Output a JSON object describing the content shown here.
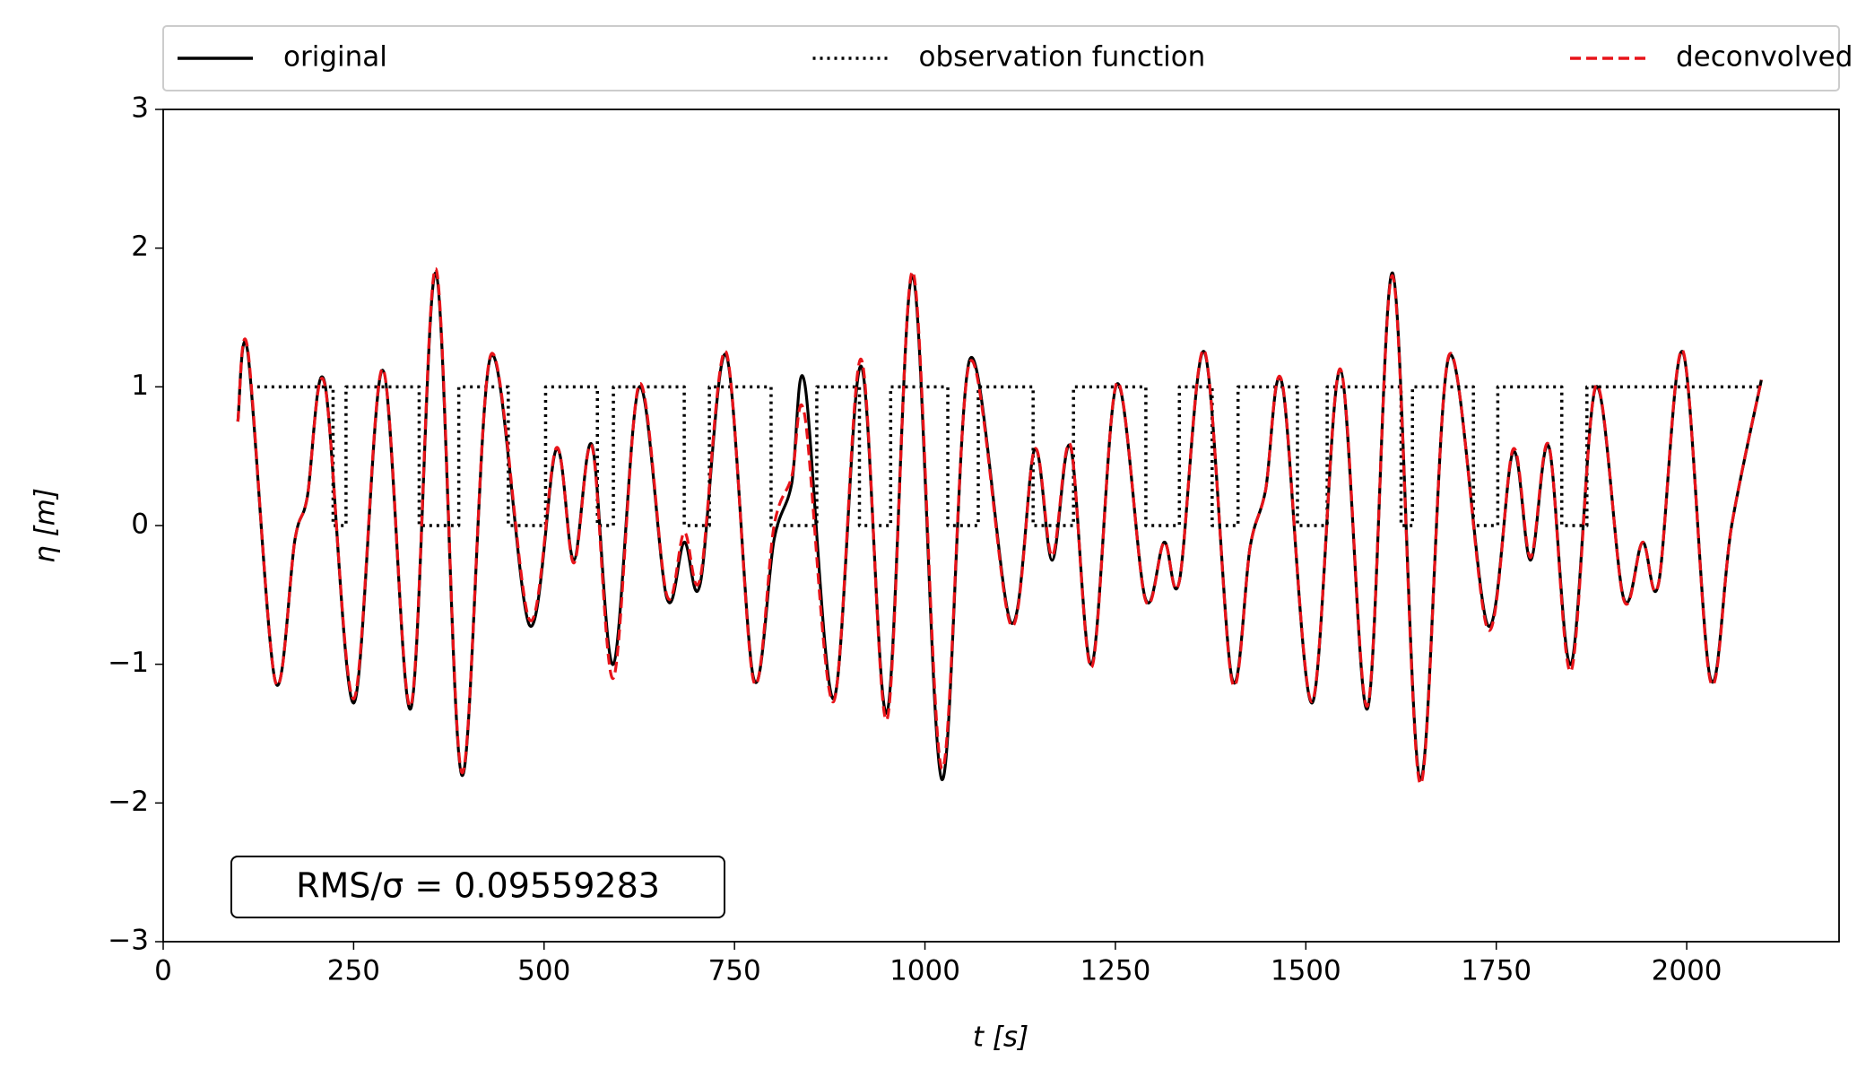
{
  "chart_data": {
    "type": "line",
    "xlabel": "t [s]",
    "ylabel": "η [m]",
    "xlim": [
      0,
      2200
    ],
    "ylim": [
      -3,
      3
    ],
    "xticks": [
      0,
      250,
      500,
      750,
      1000,
      1250,
      1500,
      1750,
      2000
    ],
    "yticks": [
      {
        "value": -3,
        "label": "−3"
      },
      {
        "value": -2,
        "label": "−2"
      },
      {
        "value": -1,
        "label": "−1"
      },
      0,
      1,
      2,
      3
    ],
    "grid": false,
    "legend": "top",
    "annotation": "RMS/σ = 0.09559283",
    "series": [
      {
        "name": "original",
        "color": "#000000",
        "style": "solid",
        "smooth": true,
        "x": [
          98,
          111,
          147,
          173,
          189,
          212,
          250,
          288,
          325,
          358,
          392,
          430,
          481,
          516,
          539,
          563,
          591,
          625,
          661,
          684,
          705,
          739,
          775,
          802,
          825,
          842,
          880,
          916,
          950,
          984,
          1022,
          1059,
          1113,
          1144,
          1167,
          1191,
          1219,
          1252,
          1289,
          1314,
          1334,
          1367,
          1403,
          1427,
          1447,
          1469,
          1508,
          1545,
          1581,
          1614,
          1650,
          1688,
          1739,
          1772,
          1795,
          1819,
          1848,
          1881,
          1917,
          1942,
          1963,
          1995,
          2031,
          2059,
          2098
        ],
        "values": [
          0.75,
          1.25,
          -1.12,
          -0.1,
          0.2,
          1.03,
          -1.28,
          1.12,
          -1.32,
          1.82,
          -1.8,
          1.22,
          -0.72,
          0.55,
          -0.25,
          0.58,
          -1.0,
          1.0,
          -0.52,
          -0.12,
          -0.42,
          1.23,
          -1.1,
          -0.1,
          0.3,
          1.03,
          -1.25,
          1.15,
          -1.35,
          1.8,
          -1.83,
          1.2,
          -0.7,
          0.55,
          -0.25,
          0.57,
          -1.0,
          1.02,
          -0.52,
          -0.12,
          -0.4,
          1.25,
          -1.1,
          -0.15,
          0.25,
          1.02,
          -1.28,
          1.12,
          -1.32,
          1.82,
          -1.83,
          1.22,
          -0.72,
          0.53,
          -0.25,
          0.57,
          -1.0,
          1.0,
          -0.52,
          -0.12,
          -0.42,
          1.25,
          -1.1,
          0.0,
          1.05
        ]
      },
      {
        "name": "observation function",
        "color": "#000000",
        "style": "dotted",
        "smooth": false,
        "x": [
          114,
          223,
          223,
          240,
          240,
          336,
          336,
          388,
          388,
          453,
          453,
          502,
          502,
          570,
          570,
          591,
          591,
          684,
          684,
          717,
          717,
          798,
          798,
          858,
          858,
          914,
          914,
          955,
          955,
          1030,
          1030,
          1070,
          1070,
          1142,
          1142,
          1195,
          1195,
          1290,
          1290,
          1334,
          1334,
          1377,
          1377,
          1411,
          1411,
          1489,
          1489,
          1528,
          1528,
          1625,
          1625,
          1640,
          1640,
          1720,
          1720,
          1752,
          1752,
          1836,
          1836,
          1869,
          1869,
          2100
        ],
        "values": [
          1,
          1,
          0,
          0,
          1,
          1,
          0,
          0,
          1,
          1,
          0,
          0,
          1,
          1,
          0,
          0,
          1,
          1,
          0,
          0,
          1,
          1,
          0,
          0,
          1,
          1,
          0,
          0,
          1,
          1,
          0,
          0,
          1,
          1,
          0,
          0,
          1,
          1,
          0,
          0,
          1,
          1,
          0,
          0,
          1,
          1,
          0,
          0,
          1,
          1,
          0,
          0,
          1,
          1,
          0,
          0,
          1,
          1,
          0,
          0,
          1,
          1
        ]
      },
      {
        "name": "deconvolved",
        "color": "#e8141a",
        "style": "dashed",
        "smooth": true,
        "x": [
          98,
          111,
          147,
          173,
          189,
          212,
          250,
          288,
          325,
          358,
          392,
          430,
          481,
          516,
          539,
          563,
          591,
          625,
          661,
          684,
          705,
          739,
          775,
          802,
          825,
          842,
          880,
          916,
          950,
          984,
          1022,
          1059,
          1113,
          1144,
          1167,
          1191,
          1219,
          1252,
          1289,
          1314,
          1334,
          1367,
          1403,
          1427,
          1447,
          1469,
          1508,
          1545,
          1581,
          1614,
          1650,
          1688,
          1739,
          1772,
          1795,
          1819,
          1848,
          1881,
          1917,
          1942,
          1963,
          1995,
          2031,
          2059,
          2098
        ],
        "values": [
          0.75,
          1.27,
          -1.12,
          -0.1,
          0.2,
          1.02,
          -1.25,
          1.13,
          -1.3,
          1.85,
          -1.78,
          1.23,
          -0.68,
          0.56,
          -0.27,
          0.57,
          -1.1,
          1.02,
          -0.5,
          -0.05,
          -0.38,
          1.25,
          -1.12,
          0.0,
          0.35,
          0.8,
          -1.27,
          1.2,
          -1.4,
          1.83,
          -1.75,
          1.18,
          -0.72,
          0.55,
          -0.22,
          0.58,
          -1.02,
          1.03,
          -0.53,
          -0.12,
          -0.4,
          1.26,
          -1.12,
          -0.15,
          0.25,
          1.03,
          -1.27,
          1.13,
          -1.3,
          1.8,
          -1.86,
          1.23,
          -0.75,
          0.55,
          -0.23,
          0.58,
          -1.05,
          1.01,
          -0.53,
          -0.12,
          -0.42,
          1.26,
          -1.12,
          0.0,
          1.05
        ]
      }
    ]
  }
}
